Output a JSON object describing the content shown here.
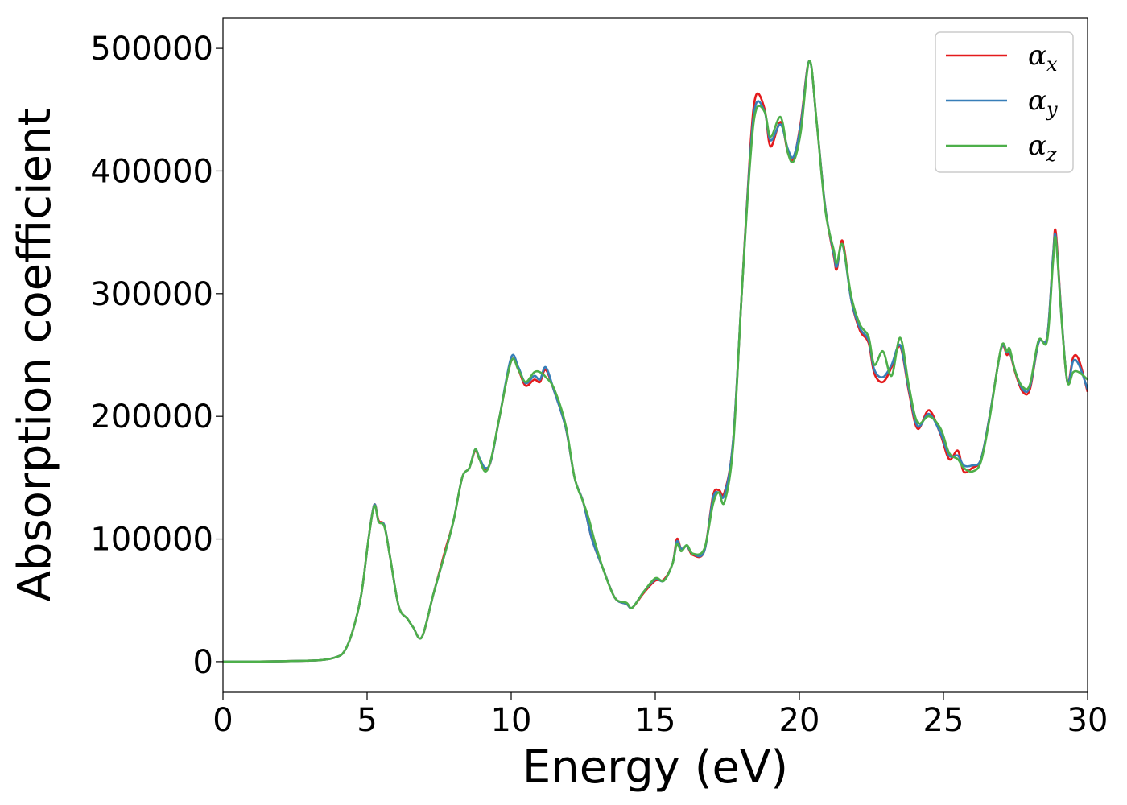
{
  "chart_data": {
    "type": "line",
    "xlabel": "Energy (eV)",
    "ylabel": "Absorption coefficient",
    "xlim": [
      0,
      30
    ],
    "ylim": [
      -25000,
      525000
    ],
    "xticks": [
      0,
      5,
      10,
      15,
      20,
      25,
      30
    ],
    "yticks": [
      0,
      100000,
      200000,
      300000,
      400000,
      500000
    ],
    "grid": false,
    "legend_position": "top-right",
    "series": [
      {
        "name": "αx",
        "legend_base": "α",
        "legend_sub": "x",
        "color": "#e41a1c",
        "points": [
          [
            0,
            0
          ],
          [
            1,
            0
          ],
          [
            2,
            300
          ],
          [
            3,
            800
          ],
          [
            3.5,
            1500
          ],
          [
            3.9,
            3500
          ],
          [
            4.2,
            8000
          ],
          [
            4.5,
            25000
          ],
          [
            4.8,
            55000
          ],
          [
            5.05,
            100000
          ],
          [
            5.25,
            128000
          ],
          [
            5.4,
            115000
          ],
          [
            5.6,
            111000
          ],
          [
            5.8,
            85000
          ],
          [
            6.1,
            45000
          ],
          [
            6.4,
            35000
          ],
          [
            6.6,
            28000
          ],
          [
            6.9,
            20000
          ],
          [
            7.3,
            55000
          ],
          [
            7.7,
            90000
          ],
          [
            8.0,
            115000
          ],
          [
            8.3,
            150000
          ],
          [
            8.55,
            158000
          ],
          [
            8.75,
            172000
          ],
          [
            8.9,
            165000
          ],
          [
            9.1,
            157000
          ],
          [
            9.3,
            164000
          ],
          [
            9.6,
            200000
          ],
          [
            10.0,
            245000
          ],
          [
            10.25,
            238000
          ],
          [
            10.5,
            225000
          ],
          [
            10.8,
            230000
          ],
          [
            11.0,
            228000
          ],
          [
            11.2,
            238000
          ],
          [
            11.5,
            220000
          ],
          [
            11.9,
            190000
          ],
          [
            12.2,
            150000
          ],
          [
            12.5,
            130000
          ],
          [
            12.8,
            100000
          ],
          [
            13.2,
            75000
          ],
          [
            13.6,
            52000
          ],
          [
            14.0,
            47000
          ],
          [
            14.2,
            44000
          ],
          [
            14.6,
            56000
          ],
          [
            15.0,
            66000
          ],
          [
            15.3,
            67000
          ],
          [
            15.6,
            80000
          ],
          [
            15.75,
            100000
          ],
          [
            15.9,
            92000
          ],
          [
            16.1,
            94000
          ],
          [
            16.3,
            87000
          ],
          [
            16.7,
            90000
          ],
          [
            17.0,
            135000
          ],
          [
            17.2,
            140000
          ],
          [
            17.4,
            138000
          ],
          [
            17.7,
            180000
          ],
          [
            18.0,
            300000
          ],
          [
            18.3,
            420000
          ],
          [
            18.5,
            462000
          ],
          [
            18.8,
            450000
          ],
          [
            19.0,
            420000
          ],
          [
            19.35,
            440000
          ],
          [
            19.6,
            415000
          ],
          [
            19.8,
            410000
          ],
          [
            20.05,
            440000
          ],
          [
            20.35,
            490000
          ],
          [
            20.6,
            440000
          ],
          [
            20.9,
            370000
          ],
          [
            21.2,
            330000
          ],
          [
            21.3,
            320000
          ],
          [
            21.5,
            343000
          ],
          [
            21.8,
            295000
          ],
          [
            22.1,
            270000
          ],
          [
            22.4,
            260000
          ],
          [
            22.6,
            235000
          ],
          [
            22.9,
            228000
          ],
          [
            23.2,
            240000
          ],
          [
            23.5,
            257000
          ],
          [
            23.8,
            220000
          ],
          [
            24.1,
            190000
          ],
          [
            24.5,
            205000
          ],
          [
            24.9,
            185000
          ],
          [
            25.2,
            165000
          ],
          [
            25.5,
            172000
          ],
          [
            25.7,
            155000
          ],
          [
            26.0,
            158000
          ],
          [
            26.3,
            165000
          ],
          [
            26.6,
            200000
          ],
          [
            27.0,
            255000
          ],
          [
            27.2,
            250000
          ],
          [
            27.3,
            252000
          ],
          [
            27.5,
            235000
          ],
          [
            27.75,
            220000
          ],
          [
            28.0,
            222000
          ],
          [
            28.3,
            260000
          ],
          [
            28.6,
            265000
          ],
          [
            28.8,
            330000
          ],
          [
            28.9,
            350000
          ],
          [
            29.1,
            280000
          ],
          [
            29.3,
            228000
          ],
          [
            29.5,
            248000
          ],
          [
            29.7,
            246000
          ],
          [
            30.0,
            220000
          ]
        ]
      },
      {
        "name": "αy",
        "legend_base": "α",
        "legend_sub": "y",
        "color": "#377eb8",
        "points": [
          [
            0,
            0
          ],
          [
            1,
            0
          ],
          [
            2,
            300
          ],
          [
            3,
            800
          ],
          [
            3.5,
            1500
          ],
          [
            3.9,
            3500
          ],
          [
            4.2,
            8000
          ],
          [
            4.5,
            25000
          ],
          [
            4.8,
            55000
          ],
          [
            5.05,
            100000
          ],
          [
            5.25,
            128000
          ],
          [
            5.4,
            114000
          ],
          [
            5.6,
            111000
          ],
          [
            5.8,
            85000
          ],
          [
            6.1,
            45000
          ],
          [
            6.4,
            35000
          ],
          [
            6.6,
            28000
          ],
          [
            6.9,
            20000
          ],
          [
            7.3,
            55000
          ],
          [
            7.7,
            88000
          ],
          [
            8.0,
            115000
          ],
          [
            8.3,
            150000
          ],
          [
            8.55,
            158000
          ],
          [
            8.75,
            173000
          ],
          [
            8.9,
            166000
          ],
          [
            9.1,
            158000
          ],
          [
            9.3,
            164000
          ],
          [
            9.6,
            200000
          ],
          [
            10.0,
            248000
          ],
          [
            10.25,
            240000
          ],
          [
            10.5,
            227000
          ],
          [
            10.8,
            233000
          ],
          [
            11.0,
            230000
          ],
          [
            11.2,
            240000
          ],
          [
            11.5,
            220000
          ],
          [
            11.9,
            190000
          ],
          [
            12.2,
            150000
          ],
          [
            12.5,
            130000
          ],
          [
            12.8,
            100000
          ],
          [
            13.2,
            75000
          ],
          [
            13.6,
            52000
          ],
          [
            14.0,
            47000
          ],
          [
            14.2,
            44000
          ],
          [
            14.6,
            57000
          ],
          [
            15.0,
            67000
          ],
          [
            15.3,
            66000
          ],
          [
            15.6,
            80000
          ],
          [
            15.75,
            98000
          ],
          [
            15.9,
            92000
          ],
          [
            16.1,
            94000
          ],
          [
            16.3,
            88000
          ],
          [
            16.7,
            90000
          ],
          [
            17.0,
            133000
          ],
          [
            17.2,
            138000
          ],
          [
            17.4,
            136000
          ],
          [
            17.7,
            180000
          ],
          [
            18.0,
            300000
          ],
          [
            18.3,
            415000
          ],
          [
            18.5,
            455000
          ],
          [
            18.8,
            448000
          ],
          [
            19.0,
            425000
          ],
          [
            19.35,
            438000
          ],
          [
            19.6,
            418000
          ],
          [
            19.8,
            412000
          ],
          [
            20.05,
            438000
          ],
          [
            20.35,
            490000
          ],
          [
            20.6,
            440000
          ],
          [
            20.9,
            370000
          ],
          [
            21.2,
            332000
          ],
          [
            21.3,
            322000
          ],
          [
            21.5,
            340000
          ],
          [
            21.8,
            295000
          ],
          [
            22.1,
            272000
          ],
          [
            22.4,
            262000
          ],
          [
            22.6,
            238000
          ],
          [
            22.9,
            232000
          ],
          [
            23.2,
            242000
          ],
          [
            23.5,
            258000
          ],
          [
            23.8,
            222000
          ],
          [
            24.1,
            192000
          ],
          [
            24.5,
            202000
          ],
          [
            24.9,
            186000
          ],
          [
            25.2,
            168000
          ],
          [
            25.5,
            168000
          ],
          [
            25.7,
            160000
          ],
          [
            26.0,
            160000
          ],
          [
            26.3,
            165000
          ],
          [
            26.6,
            200000
          ],
          [
            27.0,
            255000
          ],
          [
            27.2,
            252000
          ],
          [
            27.3,
            253000
          ],
          [
            27.5,
            236000
          ],
          [
            27.75,
            222000
          ],
          [
            28.0,
            224000
          ],
          [
            28.3,
            260000
          ],
          [
            28.6,
            265000
          ],
          [
            28.8,
            330000
          ],
          [
            28.9,
            346000
          ],
          [
            29.1,
            280000
          ],
          [
            29.3,
            228000
          ],
          [
            29.5,
            245000
          ],
          [
            29.7,
            242000
          ],
          [
            30.0,
            222000
          ]
        ]
      },
      {
        "name": "αz",
        "legend_base": "α",
        "legend_sub": "z",
        "color": "#4daf4a",
        "points": [
          [
            0,
            0
          ],
          [
            1,
            0
          ],
          [
            2,
            300
          ],
          [
            3,
            800
          ],
          [
            3.5,
            1500
          ],
          [
            3.9,
            3500
          ],
          [
            4.2,
            8000
          ],
          [
            4.5,
            25000
          ],
          [
            4.8,
            55000
          ],
          [
            5.05,
            100000
          ],
          [
            5.25,
            127000
          ],
          [
            5.4,
            114000
          ],
          [
            5.6,
            110000
          ],
          [
            5.8,
            85000
          ],
          [
            6.1,
            45000
          ],
          [
            6.4,
            35000
          ],
          [
            6.6,
            28000
          ],
          [
            6.9,
            20000
          ],
          [
            7.3,
            55000
          ],
          [
            7.7,
            88000
          ],
          [
            8.0,
            115000
          ],
          [
            8.3,
            150000
          ],
          [
            8.55,
            158000
          ],
          [
            8.75,
            173000
          ],
          [
            8.9,
            165000
          ],
          [
            9.1,
            155000
          ],
          [
            9.3,
            165000
          ],
          [
            9.6,
            200000
          ],
          [
            10.0,
            245000
          ],
          [
            10.25,
            238000
          ],
          [
            10.5,
            228000
          ],
          [
            10.8,
            236000
          ],
          [
            11.0,
            236000
          ],
          [
            11.2,
            232000
          ],
          [
            11.5,
            222000
          ],
          [
            11.9,
            192000
          ],
          [
            12.2,
            150000
          ],
          [
            12.5,
            130000
          ],
          [
            12.7,
            116000
          ],
          [
            12.9,
            98000
          ],
          [
            13.2,
            75000
          ],
          [
            13.6,
            52000
          ],
          [
            14.0,
            48000
          ],
          [
            14.2,
            44000
          ],
          [
            14.6,
            57000
          ],
          [
            15.0,
            68000
          ],
          [
            15.3,
            66000
          ],
          [
            15.6,
            80000
          ],
          [
            15.75,
            96000
          ],
          [
            15.9,
            90000
          ],
          [
            16.1,
            95000
          ],
          [
            16.3,
            88000
          ],
          [
            16.7,
            92000
          ],
          [
            17.0,
            128000
          ],
          [
            17.2,
            138000
          ],
          [
            17.4,
            130000
          ],
          [
            17.7,
            175000
          ],
          [
            18.0,
            300000
          ],
          [
            18.3,
            410000
          ],
          [
            18.5,
            450000
          ],
          [
            18.8,
            448000
          ],
          [
            19.0,
            428000
          ],
          [
            19.35,
            444000
          ],
          [
            19.6,
            415000
          ],
          [
            19.8,
            408000
          ],
          [
            20.05,
            432000
          ],
          [
            20.35,
            490000
          ],
          [
            20.6,
            440000
          ],
          [
            20.9,
            368000
          ],
          [
            21.2,
            335000
          ],
          [
            21.3,
            325000
          ],
          [
            21.5,
            340000
          ],
          [
            21.8,
            298000
          ],
          [
            22.1,
            275000
          ],
          [
            22.4,
            265000
          ],
          [
            22.6,
            242000
          ],
          [
            22.9,
            253000
          ],
          [
            23.2,
            233000
          ],
          [
            23.5,
            264000
          ],
          [
            23.8,
            225000
          ],
          [
            24.1,
            195000
          ],
          [
            24.5,
            200000
          ],
          [
            24.9,
            190000
          ],
          [
            25.2,
            170000
          ],
          [
            25.5,
            165000
          ],
          [
            25.7,
            158000
          ],
          [
            26.0,
            155000
          ],
          [
            26.3,
            163000
          ],
          [
            26.6,
            198000
          ],
          [
            27.0,
            256000
          ],
          [
            27.2,
            253000
          ],
          [
            27.3,
            255000
          ],
          [
            27.5,
            236000
          ],
          [
            27.75,
            224000
          ],
          [
            28.0,
            226000
          ],
          [
            28.3,
            262000
          ],
          [
            28.6,
            262000
          ],
          [
            28.8,
            325000
          ],
          [
            28.9,
            344000
          ],
          [
            29.1,
            278000
          ],
          [
            29.3,
            228000
          ],
          [
            29.5,
            236000
          ],
          [
            29.7,
            236000
          ],
          [
            30.0,
            230000
          ]
        ]
      }
    ]
  }
}
